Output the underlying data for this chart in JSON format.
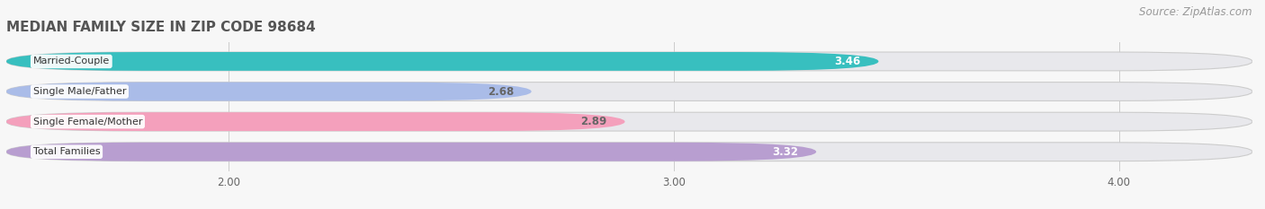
{
  "title": "MEDIAN FAMILY SIZE IN ZIP CODE 98684",
  "source": "Source: ZipAtlas.com",
  "categories": [
    "Married-Couple",
    "Single Male/Father",
    "Single Female/Mother",
    "Total Families"
  ],
  "values": [
    3.46,
    2.68,
    2.89,
    3.32
  ],
  "bar_colors": [
    "#38bfbf",
    "#aabce8",
    "#f4a0bc",
    "#b89ed0"
  ],
  "bg_color": "#e8e8ec",
  "xlim_data": [
    1.5,
    4.3
  ],
  "xmin": 1.5,
  "xmax": 4.3,
  "xticks": [
    2.0,
    3.0,
    4.0
  ],
  "value_label_colors": [
    "#ffffff",
    "#666666",
    "#666666",
    "#ffffff"
  ],
  "title_fontsize": 11,
  "source_fontsize": 8.5,
  "bar_height": 0.62,
  "bar_gap": 1.0,
  "background_color": "#f7f7f7",
  "label_white_box": true
}
